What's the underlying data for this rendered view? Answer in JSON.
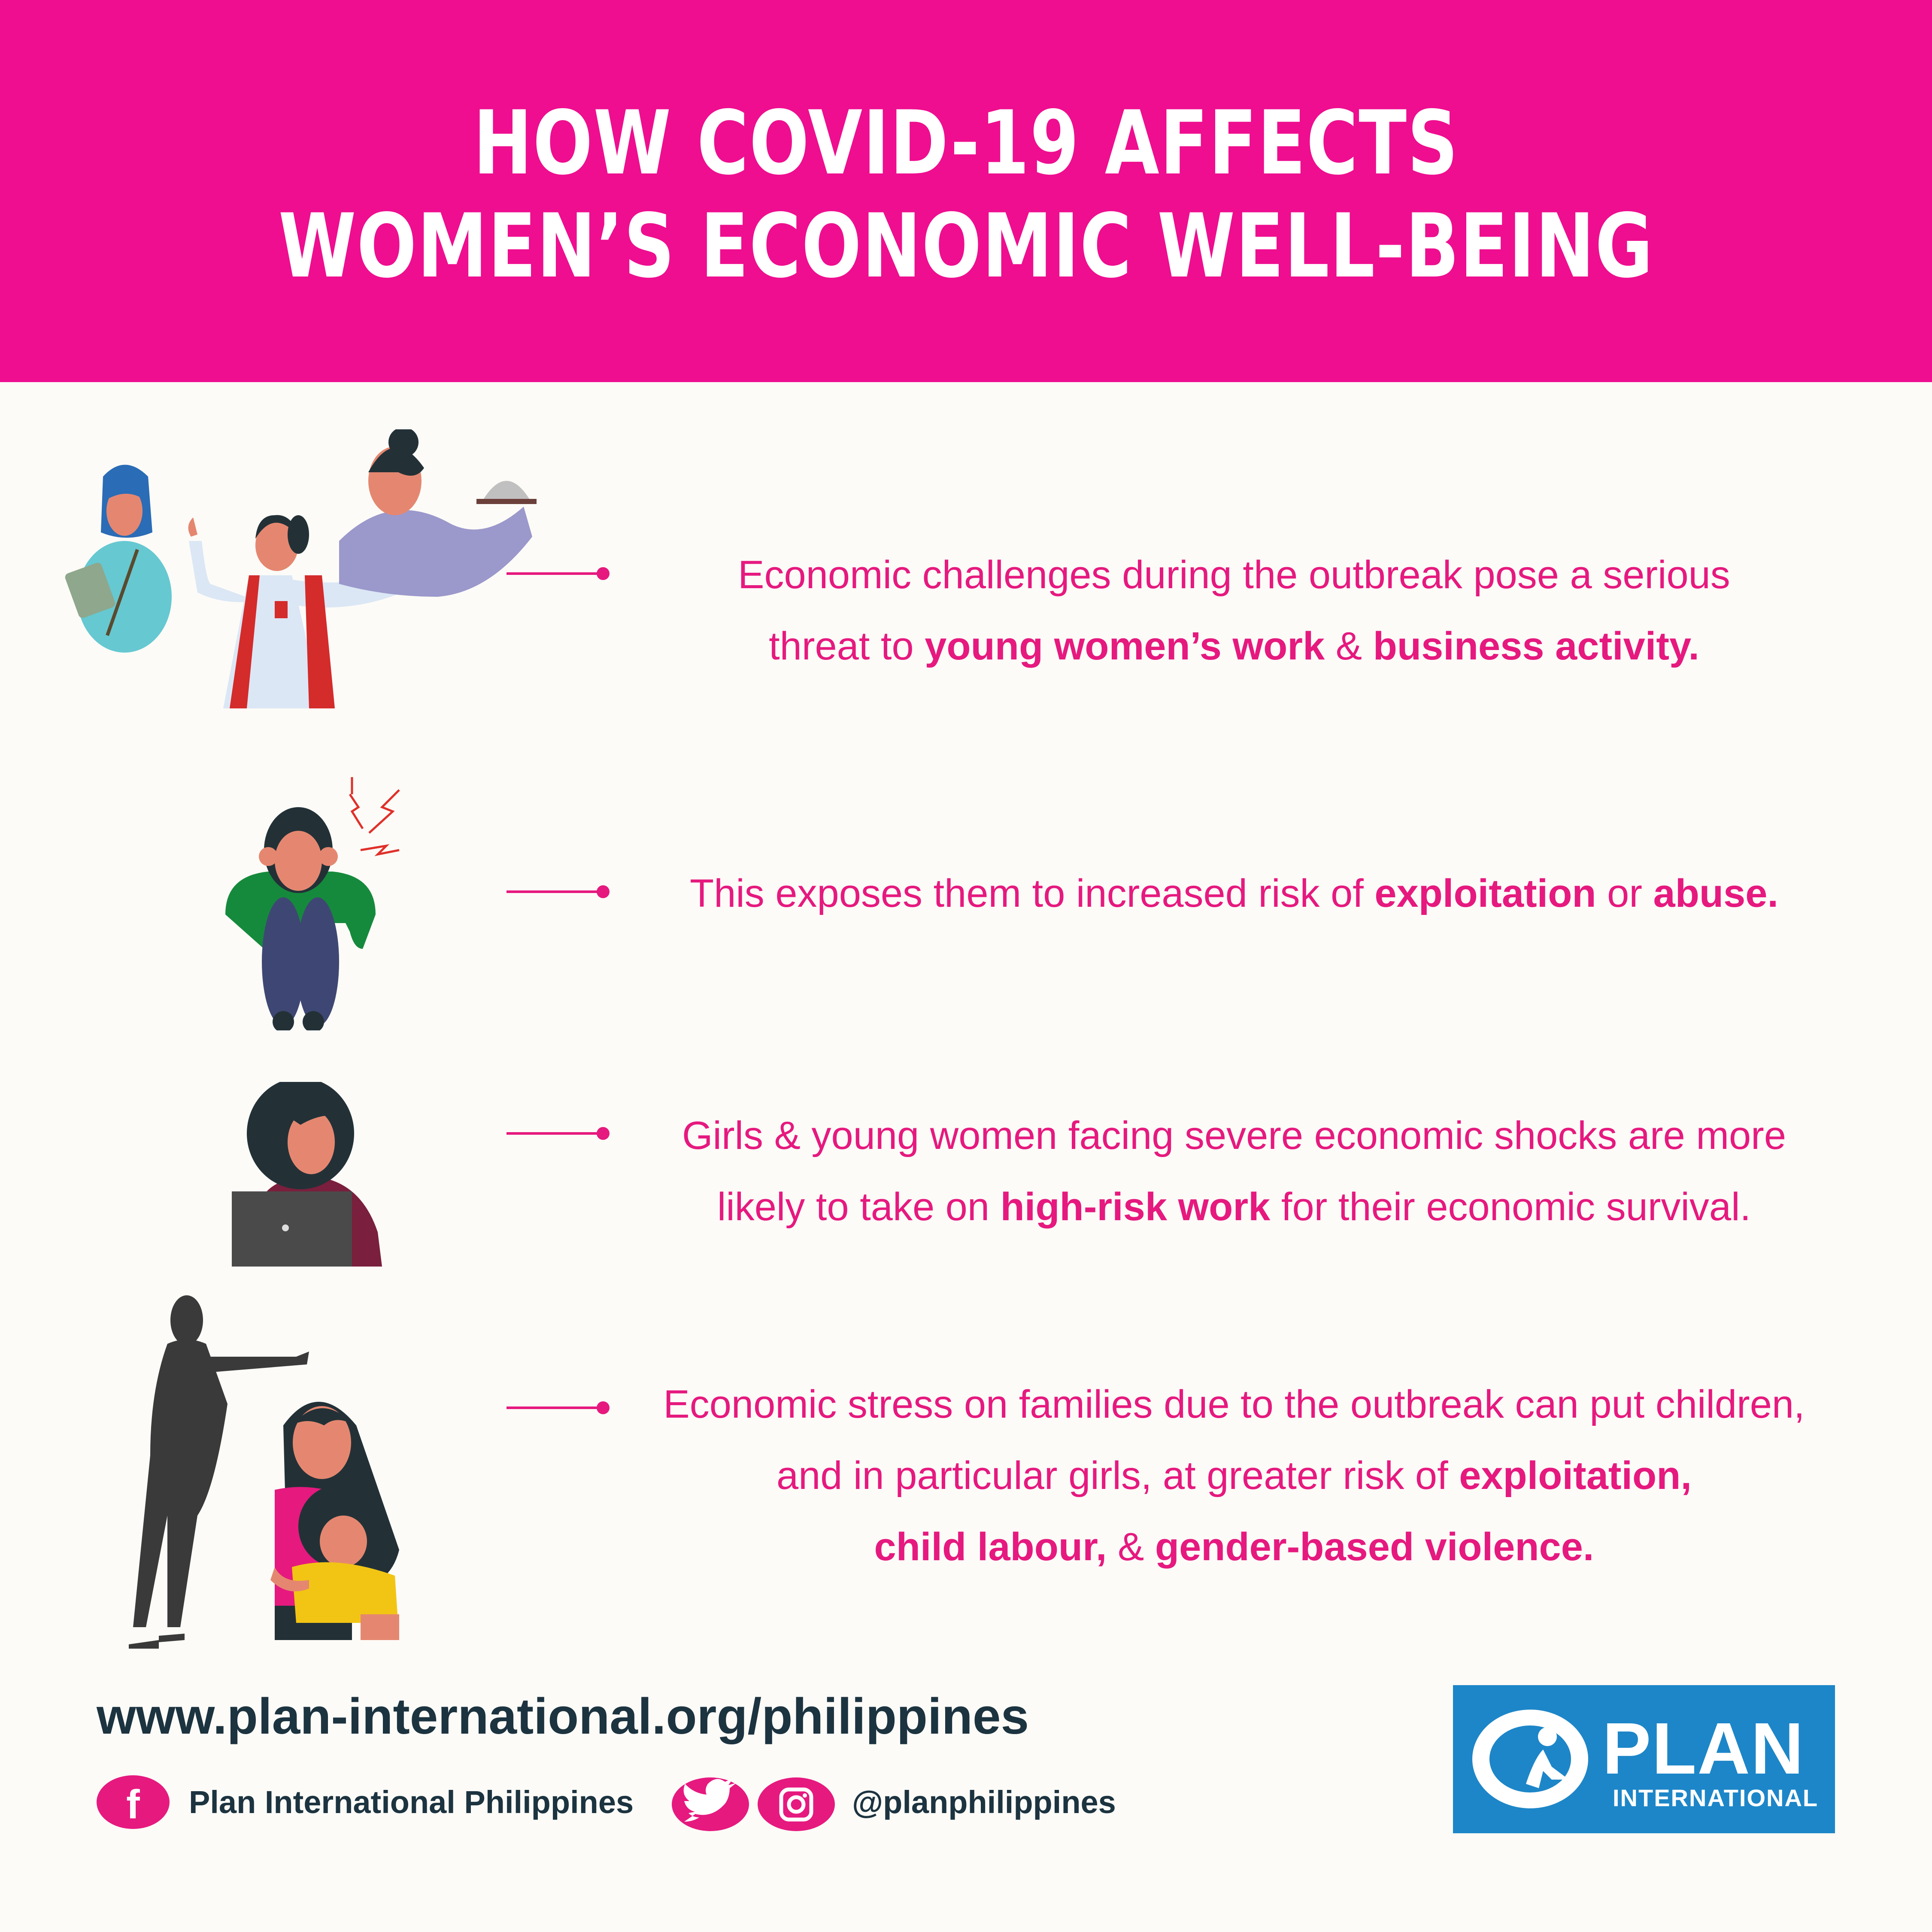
{
  "header": {
    "title_line1": "HOW COVID-19 AFFECTS",
    "title_line2": "WOMEN’S ECONOMIC WELL-BEING",
    "background_color": "#ee0e8f"
  },
  "items": [
    {
      "illustration": "working-women-icon",
      "lines": [
        [
          {
            "t": "Economic challenges during the outbreak pose a serious",
            "b": false
          }
        ],
        [
          {
            "t": "threat to ",
            "b": false
          },
          {
            "t": "young women’s work",
            "b": true
          },
          {
            "t": " & ",
            "b": false
          },
          {
            "t": "business activity.",
            "b": true
          }
        ]
      ]
    },
    {
      "illustration": "distressed-woman-icon",
      "lines": [
        [
          {
            "t": "This exposes them to increased risk of ",
            "b": false
          },
          {
            "t": "exploitation",
            "b": true
          },
          {
            "t": " or ",
            "b": false
          },
          {
            "t": "abuse.",
            "b": true
          }
        ]
      ]
    },
    {
      "illustration": "woman-laptop-icon",
      "lines": [
        [
          {
            "t": "Girls & young women facing severe economic shocks are more",
            "b": false
          }
        ],
        [
          {
            "t": "likely to take on ",
            "b": false
          },
          {
            "t": "high-risk work",
            "b": true
          },
          {
            "t": " for their economic survival.",
            "b": false
          }
        ]
      ]
    },
    {
      "illustration": "threatened-family-icon",
      "lines": [
        [
          {
            "t": "Economic stress on families due to the outbreak can put children,",
            "b": false
          }
        ],
        [
          {
            "t": "and in particular girls, at greater risk of ",
            "b": false
          },
          {
            "t": "exploitation,",
            "b": true
          }
        ],
        [
          {
            "t": "child labour,",
            "b": true
          },
          {
            "t": " & ",
            "b": false
          },
          {
            "t": "gender-based violence.",
            "b": true
          }
        ]
      ]
    }
  ],
  "footer": {
    "url": "www.plan-international.org/philippines",
    "facebook_name": "Plan International Philippines",
    "handle": "@planphilippines",
    "logo_plan": "PLAN",
    "logo_international": "INTERNATIONAL",
    "accent_color": "#e6197f",
    "logo_color": "#1d86c8"
  }
}
